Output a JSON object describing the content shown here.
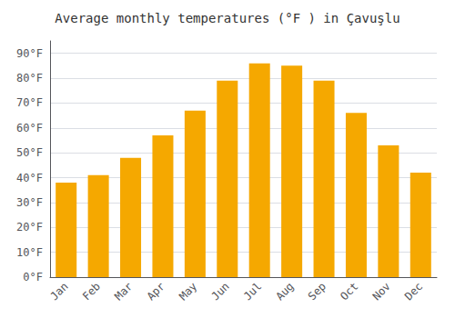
{
  "chart_data": {
    "type": "bar",
    "title": "Average monthly temperatures (°F ) in Çavuşlu",
    "categories": [
      "Jan",
      "Feb",
      "Mar",
      "Apr",
      "May",
      "Jun",
      "Jul",
      "Aug",
      "Sep",
      "Oct",
      "Nov",
      "Dec"
    ],
    "values": [
      38,
      41,
      48,
      57,
      67,
      79,
      86,
      85,
      79,
      66,
      53,
      42
    ],
    "color": "#F5A800",
    "ylim": [
      0,
      95
    ],
    "yticks": [
      {
        "value": 0,
        "label": "0°F"
      },
      {
        "value": 10,
        "label": "10°F"
      },
      {
        "value": 20,
        "label": "20°F"
      },
      {
        "value": 30,
        "label": "30°F"
      },
      {
        "value": 40,
        "label": "40°F"
      },
      {
        "value": 50,
        "label": "50°F"
      },
      {
        "value": 60,
        "label": "60°F"
      },
      {
        "value": 70,
        "label": "70°F"
      },
      {
        "value": 80,
        "label": "80°F"
      },
      {
        "value": 90,
        "label": "90°F"
      }
    ],
    "grid": true
  }
}
